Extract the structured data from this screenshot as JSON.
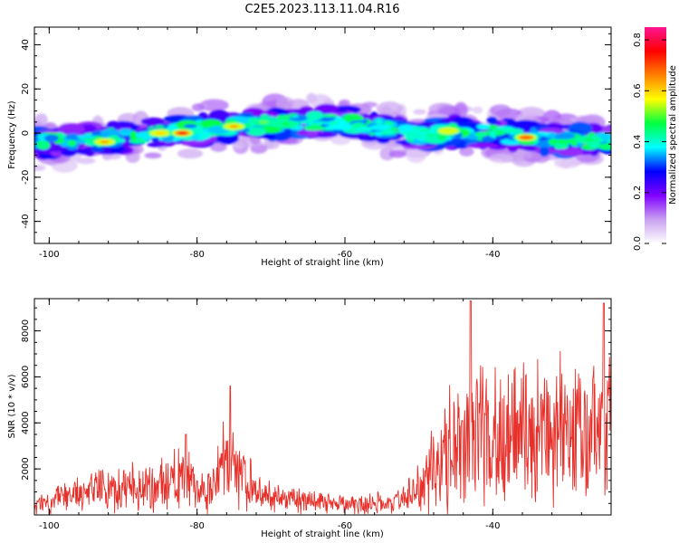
{
  "title": "C2E5.2023.113.11.04.R16",
  "chart_data": [
    {
      "type": "heatmap",
      "xlabel": "Height of straight line (km)",
      "ylabel": "Frequency (Hz)",
      "xlim": [
        -102,
        -24
      ],
      "ylim": [
        -50,
        48
      ],
      "xticks": [
        -100,
        -80,
        -60,
        -40
      ],
      "yticks": [
        -40,
        -20,
        0,
        20,
        40
      ],
      "colorbar": {
        "label": "Normalized spectral amplitude",
        "range": [
          0,
          0.85
        ],
        "ticks": [
          0.0,
          0.2,
          0.4,
          0.6,
          0.8
        ],
        "tick_labels": [
          "0.0",
          "0.2",
          "0.4",
          "0.6",
          "0.8"
        ],
        "colormap": [
          "#ffffff",
          "#c8a0f0",
          "#8000ff",
          "#0000ff",
          "#00ffff",
          "#00ff40",
          "#ffff00",
          "#ff8000",
          "#ff0000",
          "#ff1493"
        ]
      },
      "ridge": [
        {
          "x": -102,
          "y": -5
        },
        {
          "x": -96,
          "y": -3
        },
        {
          "x": -90,
          "y": -2
        },
        {
          "x": -85,
          "y": 0
        },
        {
          "x": -80,
          "y": 1
        },
        {
          "x": -75,
          "y": 3
        },
        {
          "x": -70,
          "y": 4
        },
        {
          "x": -65,
          "y": 5
        },
        {
          "x": -60,
          "y": 5
        },
        {
          "x": -55,
          "y": 2
        },
        {
          "x": -50,
          "y": -1
        },
        {
          "x": -45,
          "y": 1
        },
        {
          "x": -40,
          "y": 0
        },
        {
          "x": -35,
          "y": -2
        },
        {
          "x": -30,
          "y": -3
        },
        {
          "x": -24,
          "y": -4
        }
      ],
      "peaks": [
        {
          "x": -92.5,
          "y": -4,
          "amplitude": 0.7
        },
        {
          "x": -85,
          "y": 0,
          "amplitude": 0.65
        },
        {
          "x": -82,
          "y": 0,
          "amplitude": 0.85
        },
        {
          "x": -75,
          "y": 3,
          "amplitude": 0.7
        },
        {
          "x": -71,
          "y": 5,
          "amplitude": 0.55
        },
        {
          "x": -68,
          "y": 4,
          "amplitude": 0.5
        },
        {
          "x": -46,
          "y": 1,
          "amplitude": 0.6
        },
        {
          "x": -35.5,
          "y": -2,
          "amplitude": 0.75
        },
        {
          "x": -27,
          "y": -3,
          "amplitude": 0.5
        }
      ]
    },
    {
      "type": "line",
      "xlabel": "Height of straight line (km)",
      "ylabel": "SNR (10 * v/v)",
      "xlim": [
        -102,
        -24
      ],
      "ylim": [
        0,
        9400
      ],
      "xticks": [
        -100,
        -80,
        -60,
        -40
      ],
      "yticks": [
        2000,
        4000,
        6000,
        8000
      ],
      "color": "#e8302a",
      "envelope": [
        {
          "x": -102,
          "mean": 400,
          "amp": 500
        },
        {
          "x": -97,
          "mean": 900,
          "amp": 900
        },
        {
          "x": -92,
          "mean": 1100,
          "amp": 1200
        },
        {
          "x": -86,
          "mean": 1200,
          "amp": 1300
        },
        {
          "x": -82,
          "mean": 1800,
          "amp": 1700
        },
        {
          "x": -79,
          "mean": 900,
          "amp": 1000
        },
        {
          "x": -76,
          "mean": 2200,
          "amp": 2400
        },
        {
          "x": -74,
          "mean": 1900,
          "amp": 1800
        },
        {
          "x": -72,
          "mean": 900,
          "amp": 900
        },
        {
          "x": -66,
          "mean": 600,
          "amp": 600
        },
        {
          "x": -60,
          "mean": 450,
          "amp": 500
        },
        {
          "x": -54,
          "mean": 500,
          "amp": 550
        },
        {
          "x": -51,
          "mean": 900,
          "amp": 900
        },
        {
          "x": -48,
          "mean": 2000,
          "amp": 2500
        },
        {
          "x": -45,
          "mean": 3300,
          "amp": 3800
        },
        {
          "x": -42,
          "mean": 3700,
          "amp": 4200
        },
        {
          "x": -38,
          "mean": 3400,
          "amp": 3800
        },
        {
          "x": -34,
          "mean": 3300,
          "amp": 3800
        },
        {
          "x": -30,
          "mean": 3400,
          "amp": 3900
        },
        {
          "x": -26,
          "mean": 3500,
          "amp": 4000
        },
        {
          "x": -24,
          "mean": 3400,
          "amp": 3800
        }
      ],
      "spikes": [
        {
          "x": -75.5,
          "y": 5600
        },
        {
          "x": -43,
          "y": 9300
        },
        {
          "x": -25,
          "y": 9200
        },
        {
          "x": -81.5,
          "y": 3500
        }
      ]
    }
  ]
}
